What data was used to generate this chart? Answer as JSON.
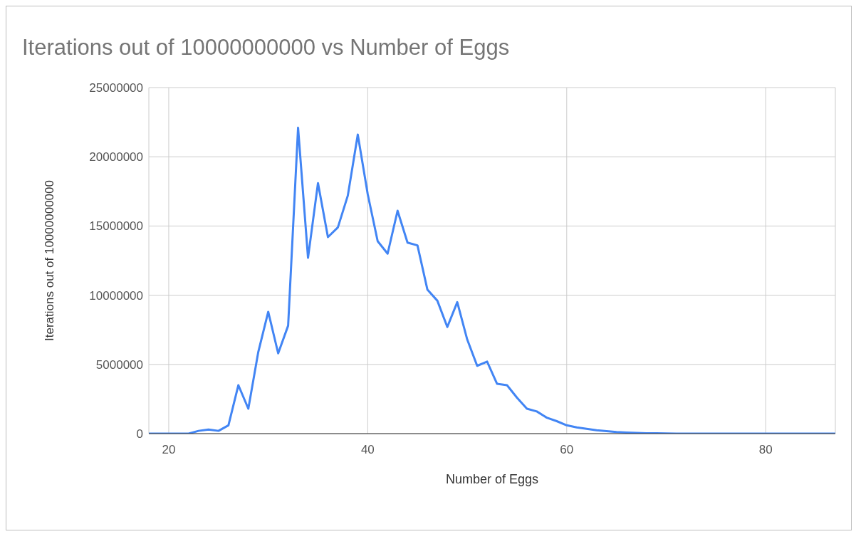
{
  "chart_data": {
    "type": "line",
    "title": "Iterations out of 10000000000 vs Number of Eggs",
    "xlabel": "Number of Eggs",
    "ylabel": "Iterations out of 10000000000",
    "x": [
      18,
      19,
      20,
      21,
      22,
      23,
      24,
      25,
      26,
      27,
      28,
      29,
      30,
      31,
      32,
      33,
      34,
      35,
      36,
      37,
      38,
      39,
      40,
      41,
      42,
      43,
      44,
      45,
      46,
      47,
      48,
      49,
      50,
      51,
      52,
      53,
      54,
      55,
      56,
      57,
      58,
      59,
      60,
      61,
      62,
      63,
      64,
      65,
      66,
      67,
      68,
      69,
      70,
      71,
      72,
      73,
      74,
      75,
      76,
      77,
      78,
      79,
      80,
      81,
      82,
      83,
      84,
      85,
      86,
      87
    ],
    "series": [
      {
        "color": "#4285f4",
        "values": [
          0,
          0,
          0,
          0,
          0,
          200000,
          300000,
          200000,
          600000,
          3500000,
          1800000,
          5900000,
          8800000,
          5800000,
          7800000,
          22100000,
          12700000,
          18100000,
          14200000,
          14900000,
          17200000,
          21600000,
          17300000,
          13900000,
          13000000,
          16100000,
          13800000,
          13600000,
          10400000,
          9600000,
          7700000,
          9500000,
          6800000,
          4900000,
          5200000,
          3600000,
          3500000,
          2600000,
          1800000,
          1600000,
          1150000,
          900000,
          600000,
          450000,
          350000,
          250000,
          180000,
          120000,
          80000,
          50000,
          30000,
          20000,
          10000,
          0,
          0,
          0,
          0,
          0,
          0,
          0,
          0,
          0,
          0,
          0,
          0,
          0,
          0,
          0,
          0,
          0
        ]
      }
    ],
    "xlim": [
      18,
      87
    ],
    "xticks": [
      20,
      40,
      60,
      80
    ],
    "ylim": [
      0,
      25000000
    ],
    "yticks": [
      0,
      5000000,
      10000000,
      15000000,
      20000000,
      25000000
    ],
    "grid": true,
    "legend": false,
    "marker": "none",
    "line_style": "solid"
  }
}
